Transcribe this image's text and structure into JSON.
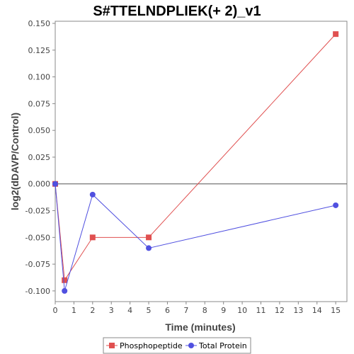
{
  "chart_data": {
    "type": "line",
    "title": "S#TTELNDPLIEK(+ 2)_v1",
    "xlabel": "Time (minutes)",
    "ylabel": "log2(dDAVP/Control)",
    "xlim": [
      0,
      15.6
    ],
    "ylim": [
      -0.11,
      0.152
    ],
    "xticks": [
      0,
      1,
      2,
      3,
      4,
      5,
      6,
      7,
      8,
      9,
      10,
      11,
      12,
      13,
      14,
      15
    ],
    "yticks": [
      -0.1,
      -0.075,
      -0.05,
      -0.025,
      0.0,
      0.025,
      0.05,
      0.075,
      0.1,
      0.125,
      0.15
    ],
    "ytick_labels": [
      "-0.100",
      "-0.075",
      "-0.050",
      "-0.025",
      "0.000",
      "0.025",
      "0.050",
      "0.075",
      "0.100",
      "0.125",
      "0.150"
    ],
    "zero_line": true,
    "grid": false,
    "legend_position": "bottom",
    "series": [
      {
        "name": "Phosphopeptide",
        "color": "#e05050",
        "marker": "square",
        "x": [
          0,
          0.5,
          2,
          5,
          15
        ],
        "y": [
          0.0,
          -0.09,
          -0.05,
          -0.05,
          0.14
        ]
      },
      {
        "name": "Total Protein",
        "color": "#5050e0",
        "marker": "circle",
        "x": [
          0,
          0.5,
          2,
          5,
          15
        ],
        "y": [
          0.0,
          -0.1,
          -0.01,
          -0.06,
          -0.02
        ]
      }
    ]
  }
}
